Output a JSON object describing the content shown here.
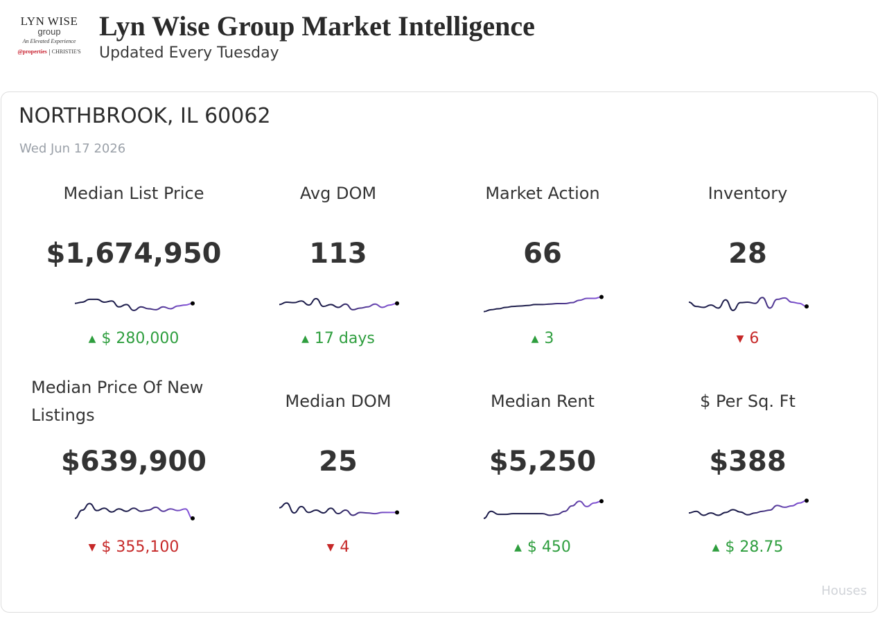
{
  "header": {
    "logo": {
      "line1": "LYN WISE",
      "line2": "group",
      "line3": "An Elevated Experience",
      "brand_a": "@properties",
      "brand_b": "CHRISTIE'S"
    },
    "title": "Lyn Wise Group Market Intelligence",
    "subtitle": "Updated Every Tuesday"
  },
  "card": {
    "location": "NORTHBROOK, IL 60062",
    "date": "Wed Jun 17 2026",
    "footer": "Houses"
  },
  "colors": {
    "up": "#2e9e3e",
    "down": "#c62828",
    "spark_start": "#1c1c4a",
    "spark_end": "#8a56e2"
  },
  "metrics": [
    {
      "label": "Median List Price",
      "value": "$1,674,950",
      "direction": "up",
      "change": "$ 280,000",
      "trend": [
        0.55,
        0.5,
        0.38,
        0.38,
        0.5,
        0.45,
        0.7,
        0.6,
        0.85,
        0.7,
        0.78,
        0.82,
        0.7,
        0.78,
        0.66,
        0.62,
        0.55
      ]
    },
    {
      "label": "Avg DOM",
      "value": "113",
      "direction": "up",
      "change": "17 days",
      "trend": [
        0.6,
        0.5,
        0.52,
        0.45,
        0.62,
        0.35,
        0.68,
        0.6,
        0.72,
        0.58,
        0.82,
        0.75,
        0.7,
        0.58,
        0.72,
        0.62,
        0.55
      ]
    },
    {
      "label": "Market Action",
      "value": "66",
      "direction": "up",
      "change": "3",
      "trend": [
        0.9,
        0.82,
        0.78,
        0.72,
        0.68,
        0.66,
        0.64,
        0.6,
        0.6,
        0.58,
        0.56,
        0.56,
        0.52,
        0.42,
        0.34,
        0.34,
        0.28
      ]
    },
    {
      "label": "Inventory",
      "value": "28",
      "direction": "down",
      "change": "6",
      "trend": [
        0.5,
        0.68,
        0.72,
        0.62,
        0.75,
        0.4,
        0.85,
        0.52,
        0.5,
        0.55,
        0.3,
        0.75,
        0.38,
        0.32,
        0.5,
        0.55,
        0.68
      ]
    },
    {
      "label": "Median Price Of New Listings",
      "value": "$639,900",
      "direction": "down",
      "change": "$ 355,100",
      "trend": [
        0.85,
        0.5,
        0.22,
        0.52,
        0.42,
        0.58,
        0.45,
        0.55,
        0.42,
        0.55,
        0.5,
        0.38,
        0.55,
        0.45,
        0.52,
        0.45,
        0.85
      ]
    },
    {
      "label": "Median DOM",
      "value": "25",
      "direction": "down",
      "change": "4",
      "trend": [
        0.4,
        0.2,
        0.62,
        0.35,
        0.6,
        0.5,
        0.62,
        0.42,
        0.65,
        0.5,
        0.72,
        0.6,
        0.62,
        0.65,
        0.6,
        0.6,
        0.6
      ]
    },
    {
      "label": "Median Rent",
      "value": "$5,250",
      "direction": "up",
      "change": "$ 450",
      "trend": [
        0.85,
        0.55,
        0.68,
        0.68,
        0.65,
        0.65,
        0.65,
        0.65,
        0.65,
        0.72,
        0.68,
        0.55,
        0.32,
        0.12,
        0.35,
        0.2,
        0.12
      ]
    },
    {
      "label": "$ Per Sq. Ft",
      "value": "$388",
      "direction": "up",
      "change": "$ 28.75",
      "trend": [
        0.62,
        0.55,
        0.72,
        0.62,
        0.72,
        0.6,
        0.48,
        0.58,
        0.7,
        0.62,
        0.55,
        0.5,
        0.3,
        0.38,
        0.32,
        0.2,
        0.1
      ]
    }
  ]
}
